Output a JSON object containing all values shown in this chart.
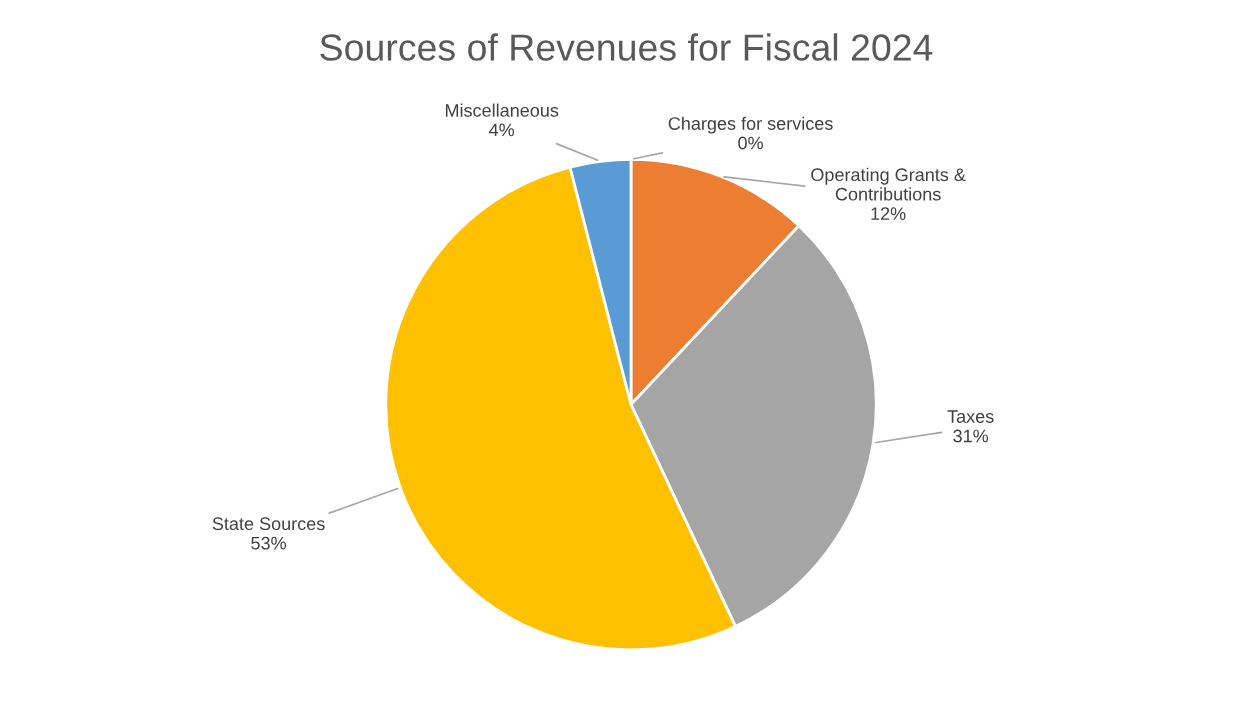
{
  "chart_data": {
    "type": "pie",
    "title": "Sources of Revenues for Fiscal 2024",
    "categories": [
      "Charges for services",
      "Operating Grants &\nContributions",
      "Taxes",
      "State Sources",
      "Miscellaneous"
    ],
    "values": [
      0,
      12,
      31,
      53,
      4
    ],
    "value_labels": [
      "0%",
      "12%",
      "31%",
      "53%",
      "4%"
    ],
    "colors": [
      "#4472c4",
      "#ed7d31",
      "#a5a5a5",
      "#ffc000",
      "#5b9bd5"
    ],
    "legend": false
  }
}
